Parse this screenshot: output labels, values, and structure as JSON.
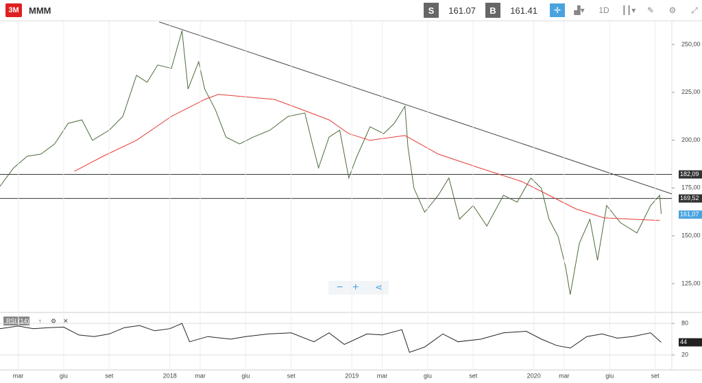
{
  "header": {
    "logo": "3M",
    "symbol": "MMM",
    "sell_label": "S",
    "sell": "161.07",
    "buy_label": "B",
    "buy": "161.41",
    "timeframe": "1D"
  },
  "chart_data": [
    {
      "type": "line",
      "xlim": [
        0.8,
        45.1
      ],
      "ylim": [
        110.3,
        261.8
      ],
      "yticks": [
        {
          "value": 125,
          "label": "125,00"
        },
        {
          "value": 150,
          "label": "150,00"
        },
        {
          "value": 175,
          "label": "175,00"
        },
        {
          "value": 200,
          "label": "200,00"
        },
        {
          "value": 225,
          "label": "225,00"
        },
        {
          "value": 250,
          "label": "250,00"
        }
      ],
      "series": [
        {
          "color": "#4a6a3a",
          "x": [
            0.8,
            1.7,
            2.6,
            3.5,
            4.4,
            5.3,
            6.2,
            6.9,
            8.0,
            8.9,
            9.8,
            10.5,
            11.2,
            12.1,
            12.8,
            13.2,
            13.9,
            14.3,
            15.0,
            15.7,
            16.6,
            17.5,
            18.6,
            19.8,
            20.9,
            21.4,
            21.8,
            22.5,
            23.2,
            23.8,
            24.3,
            25.2,
            26.1,
            26.8,
            27.5,
            27.7,
            28.1,
            28.8,
            29.7,
            30.4,
            31.1,
            32.0,
            32.9,
            34.0,
            34.9,
            35.8,
            36.5,
            37.0,
            37.6,
            38.1,
            38.4,
            39.0,
            39.7,
            40.2,
            40.8,
            41.7,
            42.8,
            43.7,
            44.3,
            44.4
          ],
          "values": [
            175.9,
            185.5,
            191.6,
            192.7,
            198,
            208.8,
            210.6,
            199.9,
            205.2,
            212.4,
            233.9,
            230.3,
            239.3,
            237.5,
            257.2,
            226.7,
            241,
            226.7,
            216,
            201.6,
            198,
            201.6,
            205.2,
            212.4,
            214.2,
            198,
            185.5,
            201.6,
            205.2,
            180.2,
            190.9,
            207,
            203.4,
            208.8,
            217.8,
            196.3,
            174.8,
            162.3,
            171.2,
            180.2,
            158.7,
            165.8,
            155.1,
            171.2,
            167.6,
            180.2,
            174.8,
            158.7,
            149.7,
            133.6,
            119.3,
            146.1,
            158.7,
            137.2,
            165.8,
            156.9,
            151.5,
            165.8,
            171.2,
            161.5
          ]
        },
        {
          "color": "#e53935",
          "x": [
            5.7,
            7.6,
            9.8,
            12.1,
            14.3,
            15.2,
            18.9,
            20.7,
            22.5,
            23.8,
            25.2,
            27.5,
            29.7,
            32.4,
            35.2,
            37.0,
            38.8,
            40.6,
            42.4,
            44.3
          ],
          "values": [
            183.7,
            191.6,
            199.9,
            212.4,
            221.3,
            223.9,
            221.3,
            216,
            210.6,
            203.4,
            199.9,
            202.4,
            192.7,
            185.5,
            178.4,
            171.2,
            164,
            159.4,
            158.7,
            158
          ]
        },
        {
          "color": "#444444",
          "x": [
            11.3,
            45.1
          ],
          "values": [
            261.8,
            171.9
          ]
        }
      ],
      "levels": [
        {
          "value": 182.09,
          "label": "182,09"
        },
        {
          "value": 169.52,
          "label": "169,52"
        }
      ],
      "last": {
        "value": 161.07,
        "label": "161,07",
        "color": "#4aa3df"
      }
    },
    {
      "type": "line",
      "title": "RSI (14)",
      "xlim": [
        0.8,
        45.1
      ],
      "ylim": [
        -8.7,
        98.3
      ],
      "yticks": [
        20,
        80
      ],
      "xticks": [
        {
          "value": 2,
          "label": "mar"
        },
        {
          "value": 5,
          "label": "giu"
        },
        {
          "value": 8,
          "label": "set"
        },
        {
          "value": 12,
          "label": "2018"
        },
        {
          "value": 14,
          "label": "mar"
        },
        {
          "value": 17,
          "label": "giu"
        },
        {
          "value": 20,
          "label": "set"
        },
        {
          "value": 24,
          "label": "2019"
        },
        {
          "value": 26,
          "label": "mar"
        },
        {
          "value": 29,
          "label": "giu"
        },
        {
          "value": 32,
          "label": "set"
        },
        {
          "value": 36,
          "label": "2020"
        },
        {
          "value": 38,
          "label": "mar"
        },
        {
          "value": 41,
          "label": "giu"
        },
        {
          "value": 44,
          "label": "set"
        }
      ],
      "series": [
        {
          "color": "#222222",
          "x": [
            0.8,
            2,
            3,
            4,
            5,
            6,
            7,
            8,
            9,
            10,
            11,
            12,
            12.8,
            13.3,
            14.5,
            16,
            17,
            18.5,
            20,
            21.5,
            22.5,
            23.5,
            25,
            26,
            27.3,
            27.8,
            28.8,
            30,
            31,
            32.5,
            34,
            35.5,
            36.5,
            37.5,
            38.4,
            39.5,
            40.5,
            41.5,
            42.5,
            43.7,
            44.4
          ],
          "values": [
            70,
            75,
            70,
            72,
            73,
            58,
            55,
            60,
            72,
            76,
            66,
            70,
            80,
            45,
            55,
            50,
            55,
            60,
            62,
            45,
            62,
            40,
            60,
            58,
            68,
            25,
            35,
            60,
            45,
            50,
            62,
            65,
            50,
            38,
            33,
            55,
            60,
            52,
            55,
            62,
            44
          ]
        }
      ],
      "last": {
        "value": 44,
        "label": "44",
        "color": "#222222"
      }
    }
  ]
}
